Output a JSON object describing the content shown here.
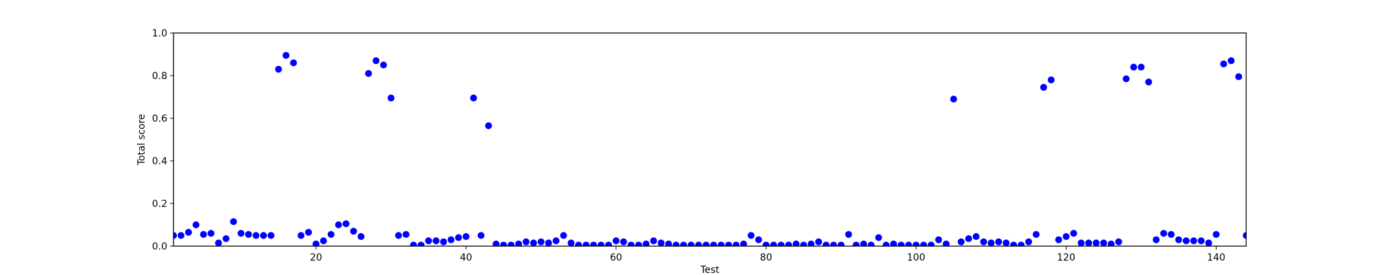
{
  "chart_data": {
    "type": "scatter",
    "xlabel": "Test",
    "ylabel": "Total score",
    "xlim": [
      1,
      144
    ],
    "ylim": [
      0,
      1.0
    ],
    "x_ticks": [
      20,
      40,
      60,
      80,
      100,
      120,
      140
    ],
    "y_ticks": [
      0.0,
      0.2,
      0.4,
      0.6,
      0.8,
      1.0
    ],
    "x_tick_labels": [
      "20",
      "40",
      "60",
      "80",
      "100",
      "120",
      "140"
    ],
    "y_tick_labels": [
      "0.0",
      "0.2",
      "0.4",
      "0.6",
      "0.8",
      "1.0"
    ],
    "grid": false,
    "marker_color": "#0000ff",
    "series": [
      {
        "x": [
          1,
          2,
          3,
          4,
          5,
          6,
          7,
          8,
          9,
          10,
          11,
          12,
          13,
          14,
          15,
          16,
          17,
          18,
          19,
          20,
          21,
          22,
          23,
          24,
          25,
          26,
          27,
          28,
          29,
          30,
          31,
          32,
          33,
          34,
          35,
          36,
          37,
          38,
          39,
          40,
          41,
          42,
          43,
          44,
          45,
          46,
          47,
          48,
          49,
          50,
          51,
          52,
          53,
          54,
          55,
          56,
          57,
          58,
          59,
          60,
          61,
          62,
          63,
          64,
          65,
          66,
          67,
          68,
          69,
          70,
          71,
          72,
          73,
          74,
          75,
          76,
          77,
          78,
          79,
          80,
          81,
          82,
          83,
          84,
          85,
          86,
          87,
          88,
          89,
          90,
          91,
          92,
          93,
          94,
          95,
          96,
          97,
          98,
          99,
          100,
          101,
          102,
          103,
          104,
          105,
          106,
          107,
          108,
          109,
          110,
          111,
          112,
          113,
          114,
          115,
          116,
          117,
          118,
          119,
          120,
          121,
          122,
          123,
          124,
          125,
          126,
          127,
          128,
          129,
          130,
          131,
          132,
          133,
          134,
          135,
          136,
          137,
          138,
          139,
          140,
          141,
          142,
          143,
          144
        ],
        "y": [
          0.05,
          0.05,
          0.065,
          0.1,
          0.055,
          0.06,
          0.015,
          0.035,
          0.115,
          0.06,
          0.055,
          0.05,
          0.05,
          0.05,
          0.83,
          0.895,
          0.86,
          0.05,
          0.065,
          0.01,
          0.025,
          0.055,
          0.1,
          0.105,
          0.07,
          0.045,
          0.81,
          0.87,
          0.85,
          0.695,
          0.05,
          0.055,
          0.005,
          0.005,
          0.025,
          0.025,
          0.02,
          0.03,
          0.04,
          0.045,
          0.695,
          0.05,
          0.565,
          0.01,
          0.005,
          0.005,
          0.01,
          0.02,
          0.015,
          0.02,
          0.015,
          0.025,
          0.05,
          0.015,
          0.005,
          0.005,
          0.005,
          0.005,
          0.005,
          0.025,
          0.02,
          0.005,
          0.005,
          0.01,
          0.025,
          0.015,
          0.01,
          0.005,
          0.005,
          0.005,
          0.005,
          0.005,
          0.005,
          0.005,
          0.005,
          0.005,
          0.01,
          0.05,
          0.03,
          0.005,
          0.005,
          0.005,
          0.005,
          0.01,
          0.005,
          0.01,
          0.02,
          0.005,
          0.005,
          0.005,
          0.055,
          0.005,
          0.01,
          0.005,
          0.04,
          0.005,
          0.01,
          0.005,
          0.005,
          0.005,
          0.005,
          0.005,
          0.03,
          0.01,
          0.69,
          0.02,
          0.035,
          0.045,
          0.02,
          0.015,
          0.02,
          0.015,
          0.005,
          0.005,
          0.02,
          0.055,
          0.745,
          0.78,
          0.03,
          0.045,
          0.06,
          0.015,
          0.015,
          0.015,
          0.015,
          0.01,
          0.02,
          0.785,
          0.84,
          0.84,
          0.77,
          0.03,
          0.06,
          0.055,
          0.03,
          0.025,
          0.025,
          0.025,
          0.015,
          0.055,
          0.855,
          0.87,
          0.795,
          0.05
        ]
      }
    ]
  }
}
